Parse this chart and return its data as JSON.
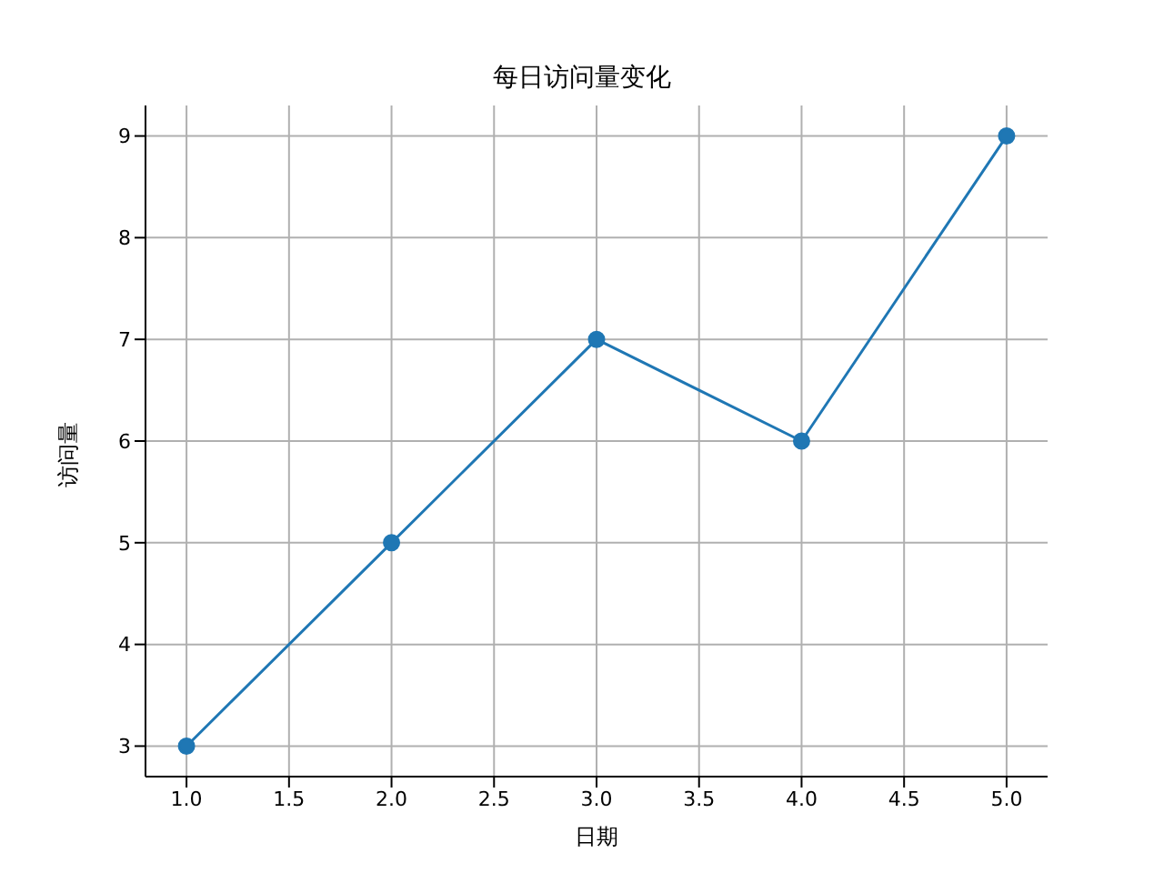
{
  "chart_data": {
    "type": "line",
    "title": "每日访问量变化",
    "xlabel": "日期",
    "ylabel": "访问量",
    "x": [
      1,
      2,
      3,
      4,
      5
    ],
    "series": [
      {
        "color": "#1f77b4",
        "values": [
          3,
          5,
          7,
          6,
          9
        ]
      }
    ],
    "xlim": [
      0.8,
      5.2
    ],
    "xticks": [
      {
        "value": 1,
        "label": "1.0"
      },
      {
        "value": 1.5,
        "label": "1.5"
      },
      {
        "value": 2,
        "label": "2.0"
      },
      {
        "value": 2.5,
        "label": "2.5"
      },
      {
        "value": 3,
        "label": "3.0"
      },
      {
        "value": 3.5,
        "label": "3.5"
      },
      {
        "value": 4,
        "label": "4.0"
      },
      {
        "value": 4.5,
        "label": "4.5"
      },
      {
        "value": 5,
        "label": "5.0"
      }
    ],
    "ylim": [
      2.7,
      9.3
    ],
    "yticks": [
      3,
      4,
      5,
      6,
      7,
      8,
      9
    ],
    "grid": true,
    "marker": "circle",
    "line_style": "solid",
    "legend": false
  }
}
